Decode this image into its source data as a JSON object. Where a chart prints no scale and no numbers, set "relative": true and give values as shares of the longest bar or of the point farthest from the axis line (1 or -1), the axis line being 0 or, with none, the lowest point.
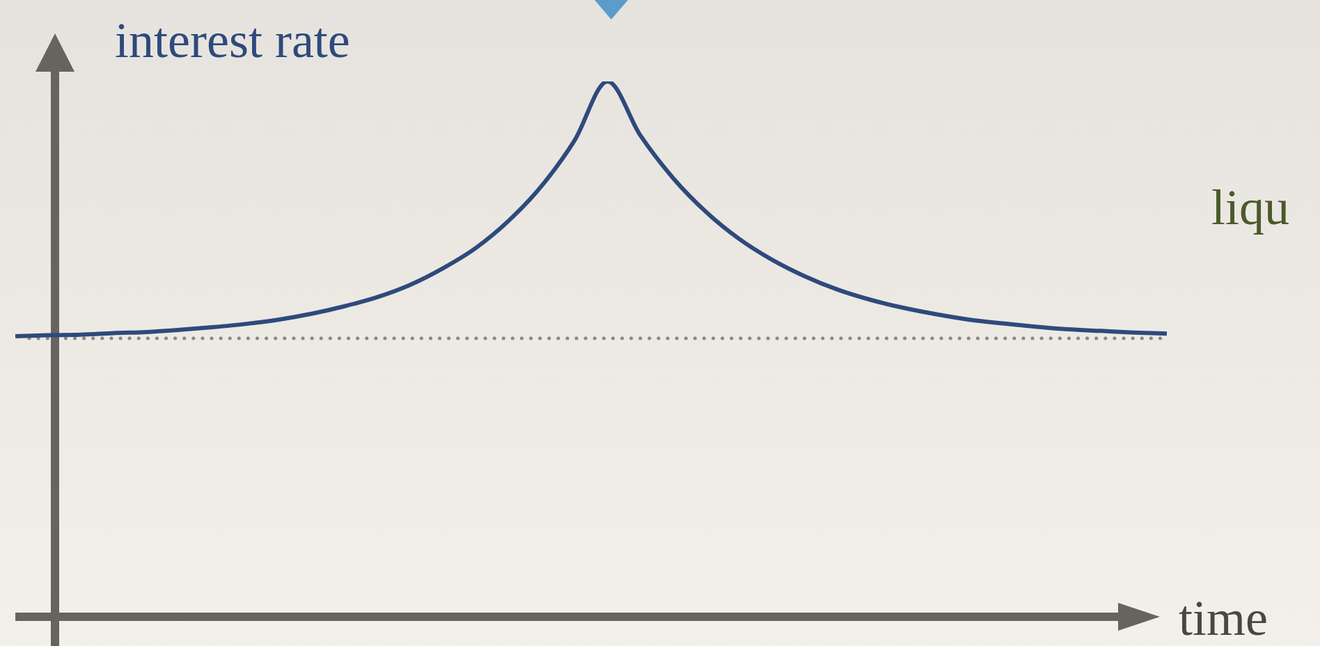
{
  "chart_data": {
    "type": "line",
    "relative": true,
    "xlabel": "time",
    "ylabel": "interest rate",
    "marker": "none",
    "annotations": [
      "liqu"
    ],
    "categories": [
      null,
      null,
      null,
      null,
      null,
      null,
      null,
      null,
      null,
      null,
      null,
      null,
      null,
      null,
      null,
      null,
      null,
      null,
      null,
      null,
      null,
      null,
      null,
      null,
      null,
      null,
      null,
      null,
      null,
      null,
      null,
      null,
      null,
      null,
      null,
      null
    ],
    "series": [
      {
        "color": "#2e4a7c",
        "values": [
          0.524,
          0.526,
          0.527,
          0.53,
          0.532,
          0.536,
          0.541,
          0.547,
          0.555,
          0.566,
          0.58,
          0.597,
          0.62,
          0.651,
          0.689,
          0.74,
          0.805,
          0.89,
          1,
          0.899,
          0.819,
          0.756,
          0.706,
          0.667,
          0.636,
          0.611,
          0.592,
          0.577,
          0.565,
          0.555,
          0.548,
          0.542,
          0.537,
          0.534,
          0.531,
          0.529
        ]
      }
    ],
    "ref_lines": [
      {
        "axis": "y",
        "value": 0.52,
        "color": "#8a8782",
        "line_style": "dotted"
      }
    ]
  }
}
